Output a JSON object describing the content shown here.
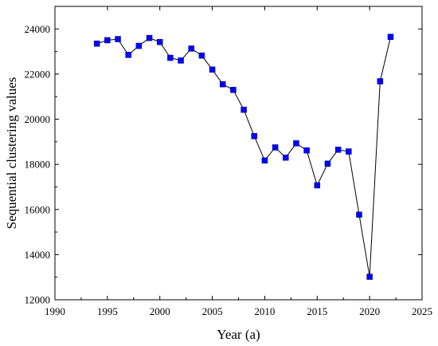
{
  "chart_data": {
    "type": "line",
    "title": "",
    "xlabel": "Year (a)",
    "ylabel": "Sequential clustering values",
    "xlim": [
      1990,
      2025
    ],
    "ylim": [
      12000,
      25000
    ],
    "x_ticks": [
      1990,
      1995,
      2000,
      2005,
      2010,
      2015,
      2020,
      2025
    ],
    "y_ticks": [
      12000,
      14000,
      16000,
      18000,
      20000,
      22000,
      24000
    ],
    "grid": false,
    "legend": "none",
    "marker": "square",
    "colors": {
      "marker": "#0000ff",
      "line": "#000000",
      "axes": "#000000"
    },
    "series": [
      {
        "x": [
          1994,
          1995,
          1996,
          1997,
          1998,
          1999,
          2000,
          2001,
          2002,
          2003,
          2004,
          2005,
          2006,
          2007,
          2008,
          2009,
          2010,
          2011,
          2012,
          2013,
          2014,
          2015,
          2016,
          2017,
          2018,
          2019,
          2020,
          2021,
          2022
        ],
        "y": [
          23350,
          23500,
          23550,
          22850,
          23250,
          23600,
          23420,
          22720,
          22600,
          23130,
          22820,
          22200,
          21550,
          21300,
          20420,
          19250,
          18170,
          18750,
          18300,
          18930,
          18620,
          17070,
          18030,
          18650,
          18570,
          15770,
          13020,
          21680,
          23650
        ]
      }
    ]
  }
}
